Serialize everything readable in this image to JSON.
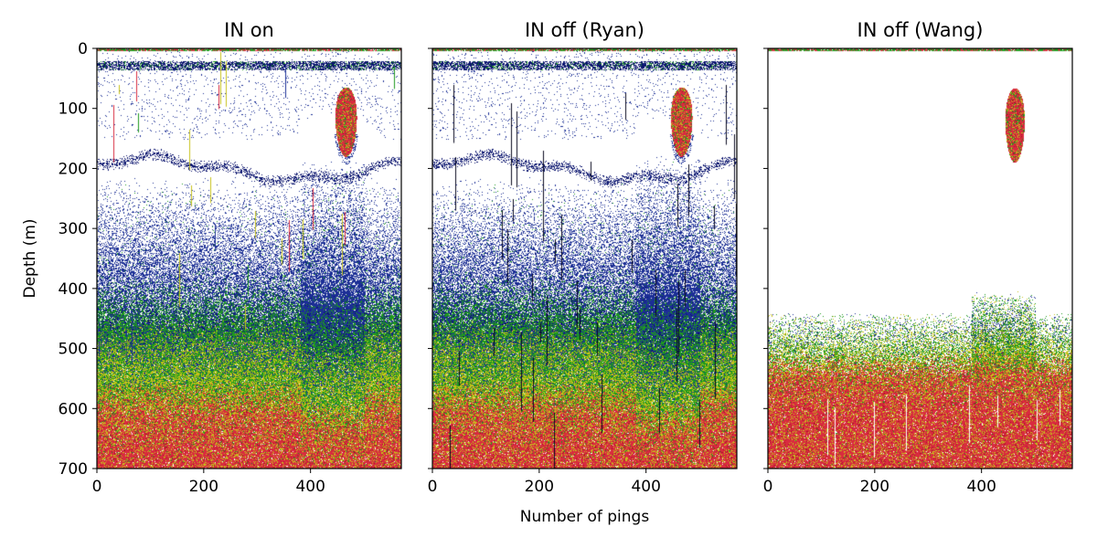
{
  "chart_data": [
    {
      "type": "heatmap",
      "title": "IN on",
      "xlabel": "",
      "ylabel": "Depth (m)",
      "xlim": [
        0,
        570
      ],
      "ylim": [
        700,
        0
      ],
      "xticks": [
        "0",
        "200",
        "400"
      ],
      "yticks": [
        "0",
        "100",
        "200",
        "300",
        "400",
        "500",
        "600",
        "700"
      ],
      "features": {
        "surface_band_depth_m": [
          20,
          35
        ],
        "school": {
          "ping_center": 466,
          "depth_center_m": 122,
          "ping_halfwidth": 20,
          "depth_halfheight_m": 58
        },
        "scattering_layer_depth_m": 200,
        "blue_onset_depth_m": 330,
        "green_onset_depth_m": 460,
        "red_onset_depth_m": 570,
        "noise_spikes": true,
        "dark_streaks": false,
        "background": "retained"
      }
    },
    {
      "type": "heatmap",
      "title": "IN off (Ryan)",
      "xlabel": "Number of pings",
      "ylabel": "",
      "xlim": [
        0,
        570
      ],
      "ylim": [
        700,
        0
      ],
      "xticks": [
        "0",
        "200",
        "400"
      ],
      "yticks": [],
      "features": {
        "surface_band_depth_m": [
          20,
          35
        ],
        "school": {
          "ping_center": 466,
          "depth_center_m": 122,
          "ping_halfwidth": 20,
          "depth_halfheight_m": 58
        },
        "scattering_layer_depth_m": 200,
        "blue_onset_depth_m": 330,
        "green_onset_depth_m": 460,
        "red_onset_depth_m": 570,
        "noise_spikes": false,
        "dark_streaks": true,
        "background": "retained"
      }
    },
    {
      "type": "heatmap",
      "title": "IN off (Wang)",
      "xlabel": "",
      "ylabel": "",
      "xlim": [
        0,
        570
      ],
      "ylim": [
        700,
        0
      ],
      "xticks": [
        "0",
        "200",
        "400"
      ],
      "yticks": [],
      "features": {
        "surface_band_depth_m": [
          0,
          5
        ],
        "school": {
          "ping_center": 462,
          "depth_center_m": 128,
          "ping_halfwidth": 18,
          "depth_halfheight_m": 62
        },
        "scattering_layer_depth_m": null,
        "blue_onset_depth_m": null,
        "green_onset_depth_m": 470,
        "red_onset_depth_m": 580,
        "noise_spikes": false,
        "dark_streaks": false,
        "background": "removed"
      }
    }
  ],
  "colors": {
    "background": "#ffffff",
    "blue": "#1c2f96",
    "green": "#1e9a1e",
    "yellow": "#c7c21b",
    "red": "#d92b3f",
    "axes": "#000000"
  }
}
